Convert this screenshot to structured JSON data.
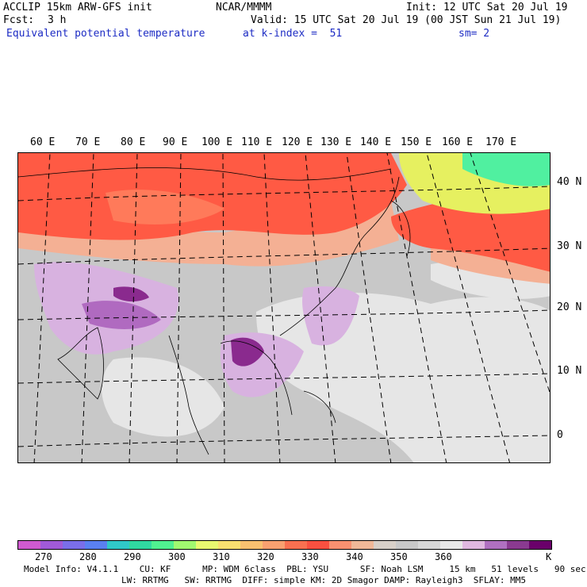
{
  "header": {
    "model": "ACCLIP 15km ARW-GFS init",
    "org": "NCAR/MMMM",
    "init": "Init: 12 UTC Sat 20 Jul 19",
    "fcst_label": "Fcst:",
    "fcst_value": "3 h",
    "valid": "Valid: 15 UTC Sat 20 Jul 19 (00 JST Sun 21 Jul 19)",
    "field": "Equivalent potential temperature",
    "level": "at k-index =  51",
    "smooth": "sm= 2"
  },
  "map": {
    "lon_labels": [
      "60 E",
      "70 E",
      "80 E",
      "90 E",
      "100 E",
      "110 E",
      "120 E",
      "130 E",
      "140 E",
      "150 E",
      "160 E",
      "170 E"
    ],
    "lat_labels": [
      "40 N",
      "30 N",
      "20 N",
      "10 N",
      "0"
    ],
    "colors": {
      "ocean": "#c8c8c8",
      "light": "#e6e6e6",
      "orange_red": "#ff5a44",
      "orange": "#ff7a5a",
      "peach": "#f4b094",
      "light_purple": "#d8b2e0",
      "mid_purple": "#b06ac0",
      "dark_purple": "#8a2a8e",
      "yellow_green": "#e6f060",
      "green": "#50f0a0"
    }
  },
  "colorbar": {
    "colors": [
      "#d05ad0",
      "#a05ad8",
      "#7a6ee8",
      "#5a80f0",
      "#30c8c8",
      "#30d8a0",
      "#50f090",
      "#a0f870",
      "#e8f870",
      "#f8e070",
      "#f8c070",
      "#f8a070",
      "#f87050",
      "#f85040",
      "#f89070",
      "#f0b898",
      "#d8d0c8",
      "#c8c8c8",
      "#d8d8d8",
      "#e8e8e8",
      "#e0b8e0",
      "#b070c0",
      "#8a3a90",
      "#6a006a"
    ],
    "labels": [
      "270",
      "280",
      "290",
      "300",
      "310",
      "320",
      "330",
      "340",
      "350",
      "360"
    ],
    "unit": "K"
  },
  "footer": {
    "line1": "Model Info: V4.1.1    CU: KF      MP: WDM 6class  PBL: YSU      SF: Noah LSM     15 km   51 levels   90 sec",
    "line2": "LW: RRTMG   SW: RRTMG  DIFF: simple KM: 2D Smagor DAMP: Rayleigh3  SFLAY: MM5"
  }
}
